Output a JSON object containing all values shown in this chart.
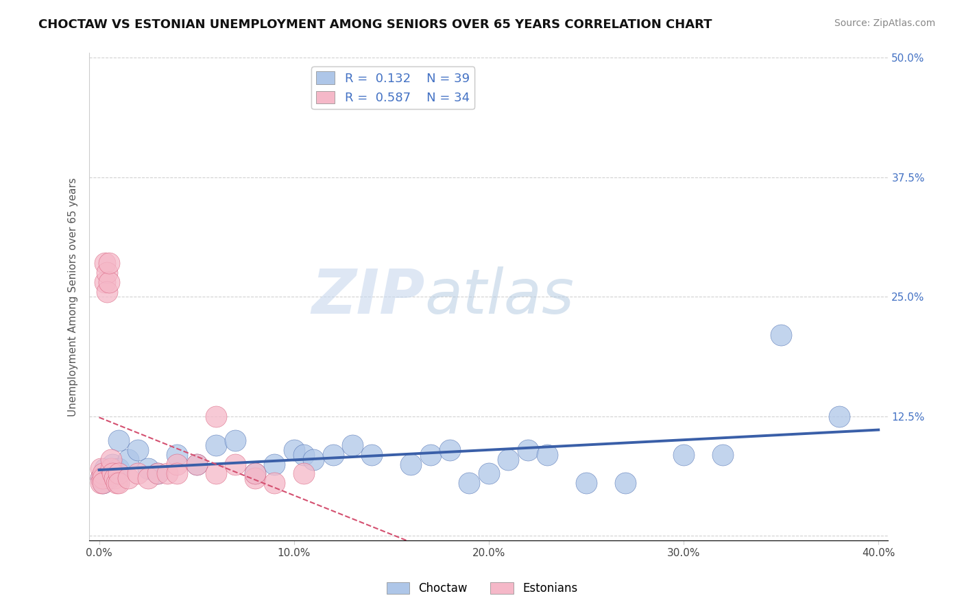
{
  "title": "CHOCTAW VS ESTONIAN UNEMPLOYMENT AMONG SENIORS OVER 65 YEARS CORRELATION CHART",
  "source": "Source: ZipAtlas.com",
  "xlabel": "",
  "ylabel": "Unemployment Among Seniors over 65 years",
  "xlim": [
    -0.005,
    0.405
  ],
  "ylim": [
    -0.005,
    0.505
  ],
  "xticks": [
    0.0,
    0.1,
    0.2,
    0.3,
    0.4
  ],
  "xticklabels": [
    "0.0%",
    "10.0%",
    "20.0%",
    "30.0%",
    "40.0%"
  ],
  "yticks": [
    0.0,
    0.125,
    0.25,
    0.375,
    0.5
  ],
  "yticklabels": [
    "",
    "12.5%",
    "25.0%",
    "37.5%",
    "50.0%"
  ],
  "choctaw_R": 0.132,
  "choctaw_N": 39,
  "estonian_R": 0.587,
  "estonian_N": 34,
  "choctaw_color": "#aec6e8",
  "estonian_color": "#f5b8c8",
  "choctaw_line_color": "#3a5fa8",
  "estonian_line_color": "#d45070",
  "watermark_zip": "ZIP",
  "watermark_atlas": "atlas",
  "choctaw_x": [
    0.001,
    0.002,
    0.003,
    0.005,
    0.007,
    0.008,
    0.01,
    0.01,
    0.015,
    0.02,
    0.025,
    0.03,
    0.04,
    0.05,
    0.06,
    0.07,
    0.08,
    0.09,
    0.1,
    0.105,
    0.11,
    0.12,
    0.13,
    0.14,
    0.16,
    0.17,
    0.18,
    0.19,
    0.2,
    0.21,
    0.22,
    0.23,
    0.25,
    0.27,
    0.3,
    0.32,
    0.35,
    0.38,
    0.005
  ],
  "choctaw_y": [
    0.06,
    0.055,
    0.07,
    0.06,
    0.075,
    0.065,
    0.07,
    0.1,
    0.08,
    0.09,
    0.07,
    0.065,
    0.085,
    0.075,
    0.095,
    0.1,
    0.065,
    0.075,
    0.09,
    0.085,
    0.08,
    0.085,
    0.095,
    0.085,
    0.075,
    0.085,
    0.09,
    0.055,
    0.065,
    0.08,
    0.09,
    0.085,
    0.055,
    0.055,
    0.085,
    0.085,
    0.21,
    0.125,
    0.06
  ],
  "estonian_x": [
    0.001,
    0.001,
    0.001,
    0.002,
    0.002,
    0.002,
    0.003,
    0.003,
    0.004,
    0.004,
    0.005,
    0.005,
    0.006,
    0.006,
    0.007,
    0.008,
    0.009,
    0.01,
    0.01,
    0.015,
    0.02,
    0.025,
    0.03,
    0.035,
    0.04,
    0.04,
    0.05,
    0.06,
    0.06,
    0.07,
    0.08,
    0.08,
    0.09,
    0.105
  ],
  "estonian_y": [
    0.07,
    0.06,
    0.055,
    0.065,
    0.06,
    0.055,
    0.285,
    0.265,
    0.275,
    0.255,
    0.265,
    0.285,
    0.07,
    0.08,
    0.065,
    0.06,
    0.055,
    0.065,
    0.055,
    0.06,
    0.065,
    0.06,
    0.065,
    0.065,
    0.075,
    0.065,
    0.075,
    0.065,
    0.125,
    0.075,
    0.06,
    0.065,
    0.055,
    0.065
  ]
}
